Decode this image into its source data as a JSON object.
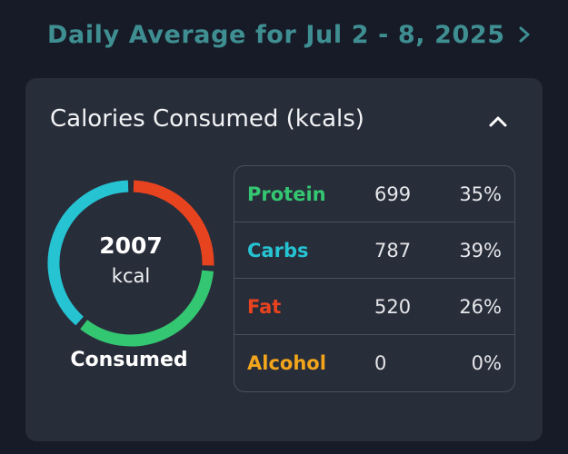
{
  "header": {
    "title": "Daily Average for Jul 2 - 8, 2025",
    "accent": "#3f8f92"
  },
  "card": {
    "title": "Calories Consumed (kcals)",
    "collapse_icon": "chevron-up-icon"
  },
  "ring": {
    "value": "2007",
    "unit": "kcal",
    "caption": "Consumed",
    "segments": [
      {
        "name": "Fat",
        "fraction": 0.26,
        "color": "#e8431f"
      },
      {
        "name": "Protein",
        "fraction": 0.35,
        "color": "#34c772"
      },
      {
        "name": "Carbs",
        "fraction": 0.39,
        "color": "#26c3d3"
      }
    ]
  },
  "macros": [
    {
      "name": "Protein",
      "kcal": "699",
      "pct": "35%",
      "color": "#34c772"
    },
    {
      "name": "Carbs",
      "kcal": "787",
      "pct": "39%",
      "color": "#26c3d3"
    },
    {
      "name": "Fat",
      "kcal": "520",
      "pct": "26%",
      "color": "#e8431f"
    },
    {
      "name": "Alcohol",
      "kcal": "0",
      "pct": "0%",
      "color": "#f2a51c"
    }
  ]
}
